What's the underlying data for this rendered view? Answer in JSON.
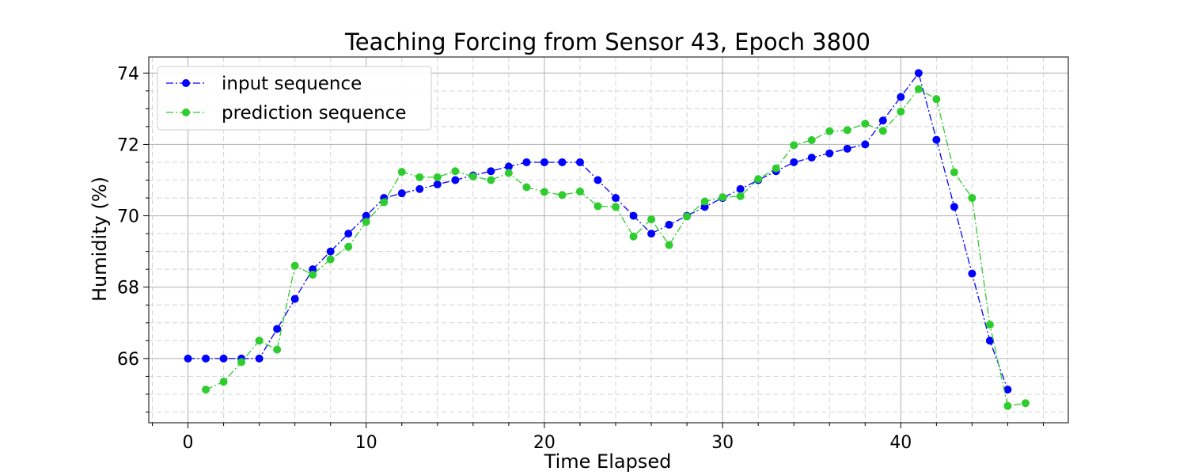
{
  "chart_data": {
    "type": "line",
    "title": "Teaching Forcing from Sensor 43, Epoch 3800",
    "xlabel": "Time Elapsed",
    "ylabel": "Humidity (%)",
    "xlim": [
      -2.2,
      49.4
    ],
    "ylim": [
      64.2,
      74.45
    ],
    "xticks": [
      0,
      10,
      20,
      30,
      40
    ],
    "yticks": [
      66,
      68,
      70,
      72,
      74
    ],
    "xticks_minor_step": 2,
    "yticks_minor_step": 0.5,
    "grid": true,
    "legend_position": "upper-left",
    "series": [
      {
        "name": "input sequence",
        "color": "#0000ff",
        "linestyle": "dashdot",
        "marker": "circle",
        "x": [
          0,
          1,
          2,
          3,
          4,
          5,
          6,
          7,
          8,
          9,
          10,
          11,
          12,
          13,
          14,
          15,
          16,
          17,
          18,
          19,
          20,
          21,
          22,
          23,
          24,
          25,
          26,
          27,
          28,
          29,
          30,
          31,
          32,
          33,
          34,
          35,
          36,
          37,
          38,
          39,
          40,
          41,
          42,
          43,
          44,
          45,
          46
        ],
        "y": [
          66.0,
          66.0,
          66.0,
          66.0,
          66.0,
          66.83,
          67.67,
          68.5,
          69.0,
          69.5,
          70.0,
          70.5,
          70.63,
          70.75,
          70.88,
          71.0,
          71.13,
          71.25,
          71.38,
          71.5,
          71.5,
          71.5,
          71.5,
          71.0,
          70.5,
          70.0,
          69.5,
          69.75,
          70.0,
          70.25,
          70.5,
          70.75,
          71.0,
          71.25,
          71.5,
          71.63,
          71.75,
          71.88,
          72.0,
          72.67,
          73.33,
          74.0,
          72.13,
          70.25,
          68.38,
          66.5,
          65.13
        ]
      },
      {
        "name": "prediction sequence",
        "color": "#2ecc2e",
        "linestyle": "dashdot",
        "marker": "circle",
        "x": [
          1,
          2,
          3,
          4,
          5,
          6,
          7,
          8,
          9,
          10,
          11,
          12,
          13,
          14,
          15,
          16,
          17,
          18,
          19,
          20,
          21,
          22,
          23,
          24,
          25,
          26,
          27,
          28,
          29,
          30,
          31,
          32,
          33,
          34,
          35,
          36,
          37,
          38,
          39,
          40,
          41,
          42,
          43,
          44,
          45,
          46,
          47
        ],
        "y": [
          65.13,
          65.35,
          65.9,
          66.5,
          66.25,
          68.6,
          68.35,
          68.78,
          69.13,
          69.83,
          70.38,
          71.23,
          71.08,
          71.08,
          71.25,
          71.1,
          71.0,
          71.2,
          70.8,
          70.67,
          70.58,
          70.68,
          70.27,
          70.25,
          69.42,
          69.9,
          69.18,
          69.98,
          70.4,
          70.52,
          70.55,
          71.03,
          71.33,
          71.98,
          72.12,
          72.37,
          72.4,
          72.58,
          72.38,
          72.92,
          73.55,
          73.27,
          71.22,
          70.5,
          66.95,
          64.67,
          64.75
        ]
      }
    ]
  }
}
